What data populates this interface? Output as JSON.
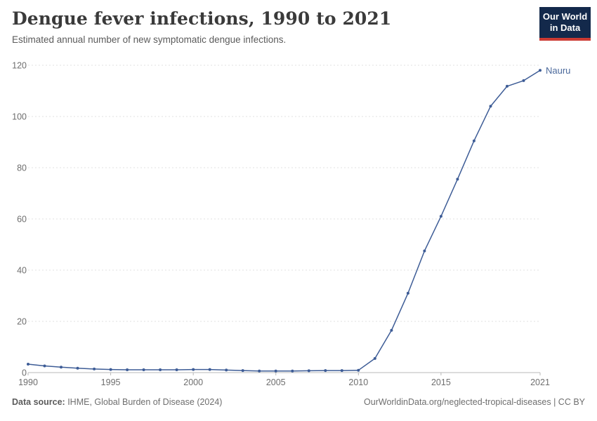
{
  "header": {
    "title": "Dengue fever infections, 1990 to 2021",
    "subtitle": "Estimated annual number of new symptomatic dengue infections.",
    "logo": {
      "line1": "Our World",
      "line2": "in Data"
    }
  },
  "footer": {
    "source_label": "Data source:",
    "source_text": " IHME, Global Burden of Disease (2024)",
    "link_text": "OurWorldinData.org/neglected-tropical-diseases | CC BY"
  },
  "colors": {
    "line": "#3d5c96",
    "entity_label": "#4c6a9c",
    "grid": "#e2e2e2",
    "axis": "#b8b8b8",
    "tick_text": "#6e6e6e",
    "logo_navy": "#13294b",
    "logo_red": "#cc3b33",
    "title_text": "#3a3a3a"
  },
  "chart_data": {
    "type": "line",
    "title": "Dengue fever infections, 1990 to 2021",
    "subtitle": "Estimated annual number of new symptomatic dengue infections.",
    "xlabel": "",
    "ylabel": "",
    "x": [
      1990,
      1991,
      1992,
      1993,
      1994,
      1995,
      1996,
      1997,
      1998,
      1999,
      2000,
      2001,
      2002,
      2003,
      2004,
      2005,
      2006,
      2007,
      2008,
      2009,
      2010,
      2011,
      2012,
      2013,
      2014,
      2015,
      2016,
      2017,
      2018,
      2019,
      2020,
      2021
    ],
    "series": [
      {
        "name": "Nauru",
        "values": [
          3.3,
          2.6,
          2.1,
          1.7,
          1.4,
          1.2,
          1.1,
          1.1,
          1.1,
          1.1,
          1.2,
          1.2,
          1.0,
          0.8,
          0.6,
          0.6,
          0.6,
          0.7,
          0.8,
          0.8,
          0.9,
          5.5,
          16.5,
          31,
          47.5,
          61,
          75.5,
          90.5,
          104,
          111.8,
          114,
          118
        ]
      }
    ],
    "xlim": [
      1990,
      2021
    ],
    "ylim": [
      0,
      120
    ],
    "yticks": [
      0,
      20,
      40,
      60,
      80,
      100,
      120
    ],
    "xticks": [
      1990,
      1995,
      2000,
      2005,
      2010,
      2015,
      2021
    ],
    "grid": "dashed-horizontal",
    "legend_position": "end-of-line-label",
    "markers": true
  }
}
